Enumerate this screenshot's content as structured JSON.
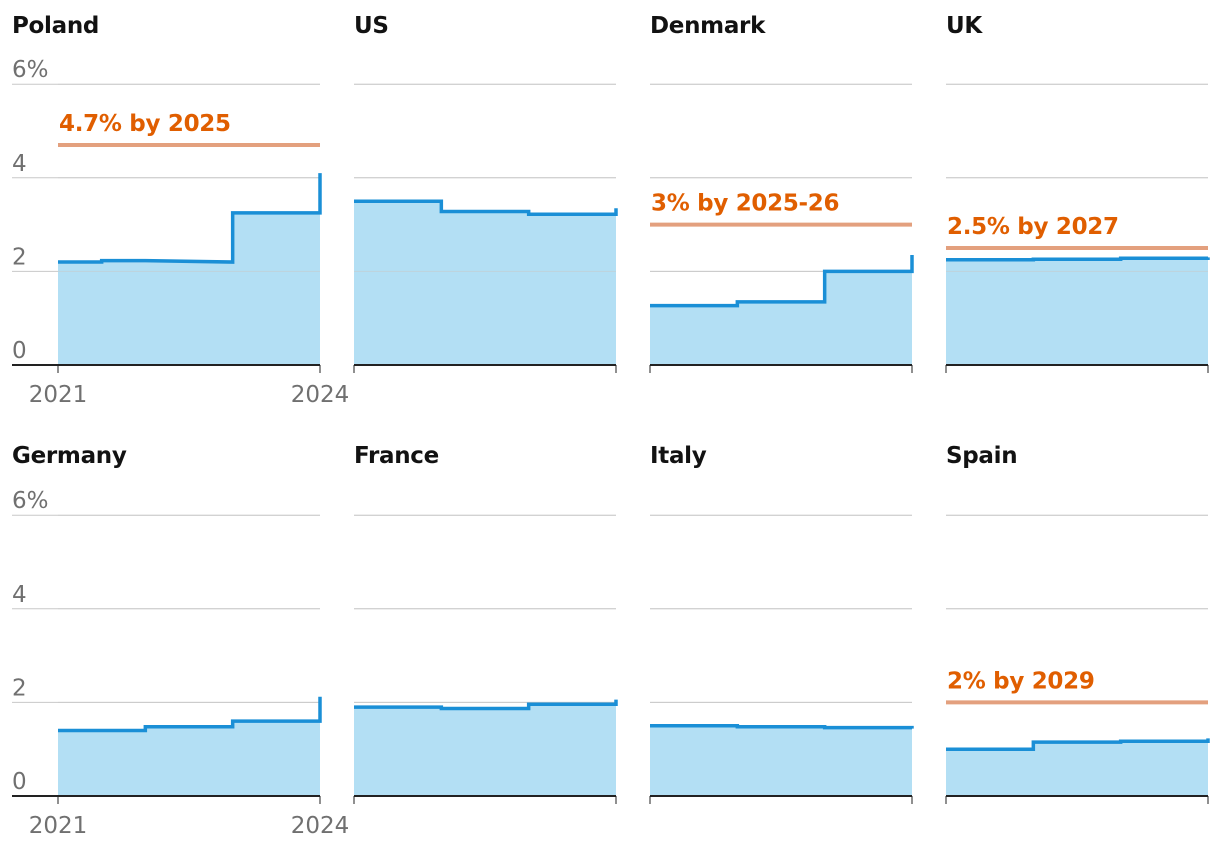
{
  "colors": {
    "line": "#1a8fd6",
    "area": "#b3dff4",
    "target": "#e3a07e",
    "target_text": "#e05e00",
    "grid": "#c8c8c8",
    "axis": "#222222",
    "tick_text": "#707070",
    "title_text": "#121212"
  },
  "chart_data": {
    "type": "area",
    "layout": "small-multiples-step",
    "ylim": [
      0,
      6
    ],
    "y_ticks": [
      {
        "value": 0,
        "label": "0"
      },
      {
        "value": 2,
        "label": "2"
      },
      {
        "value": 4,
        "label": "4"
      },
      {
        "value": 6,
        "label": "6%"
      }
    ],
    "x_ticks": [
      {
        "value": 2021,
        "label": "2021"
      },
      {
        "value": 2024,
        "label": "2024"
      }
    ],
    "x": [
      2021,
      2022,
      2023,
      2024
    ],
    "panels": [
      {
        "title": "Poland",
        "values": [
          2.2,
          2.2,
          3.25,
          4.1
        ],
        "step_2021": 2.23,
        "target": 4.7,
        "target_label": "4.7% by 2025"
      },
      {
        "title": "US",
        "values": [
          3.5,
          3.28,
          3.22,
          3.35
        ],
        "step_2021": null,
        "target": null,
        "target_label": ""
      },
      {
        "title": "Denmark",
        "values": [
          1.27,
          1.35,
          2.0,
          2.35
        ],
        "step_2021": null,
        "target": 3.0,
        "target_label": "3% by 2025-26"
      },
      {
        "title": "UK",
        "values": [
          2.25,
          2.26,
          2.28,
          2.3
        ],
        "step_2021": null,
        "target": 2.5,
        "target_label": "2.5% by 2027"
      },
      {
        "title": "Germany",
        "values": [
          1.4,
          1.48,
          1.6,
          2.12
        ],
        "step_2021": null,
        "target": null,
        "target_label": ""
      },
      {
        "title": "France",
        "values": [
          1.9,
          1.87,
          1.96,
          2.06
        ],
        "step_2021": null,
        "target": null,
        "target_label": ""
      },
      {
        "title": "Italy",
        "values": [
          1.5,
          1.48,
          1.46,
          1.44
        ],
        "step_2021": null,
        "target": null,
        "target_label": ""
      },
      {
        "title": "Spain",
        "values": [
          1.0,
          1.15,
          1.17,
          1.23
        ],
        "step_2021": null,
        "target": 2.0,
        "target_label": "2% by 2029"
      }
    ]
  }
}
